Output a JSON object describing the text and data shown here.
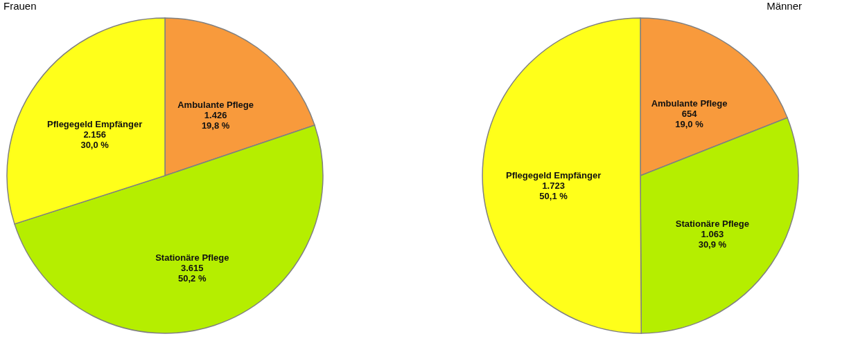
{
  "chart_data": [
    {
      "type": "pie",
      "title": "Frauen",
      "categories": [
        "Ambulante Pflege",
        "Stationäre Pflege",
        "Pflegegeld Empfänger"
      ],
      "values": [
        1426,
        3615,
        2156
      ],
      "colors": [
        "#f89a3c",
        "#b5ee00",
        "#ffff1a"
      ],
      "value_labels": [
        "1.426\n19,8 %",
        "3.615\n50,2 %",
        "2.156\n30,0 %"
      ]
    },
    {
      "type": "pie",
      "title": "Männer",
      "categories": [
        "Ambulante Pflege",
        "Stationäre Pflege",
        "Pflegegeld Empfänger"
      ],
      "values": [
        654,
        1063,
        1723
      ],
      "colors": [
        "#f89a3c",
        "#b5ee00",
        "#ffff1a"
      ],
      "value_labels": [
        "654\n19,0 %",
        "1.063\n30,9 %",
        "1.723\n50,1 %"
      ]
    }
  ]
}
